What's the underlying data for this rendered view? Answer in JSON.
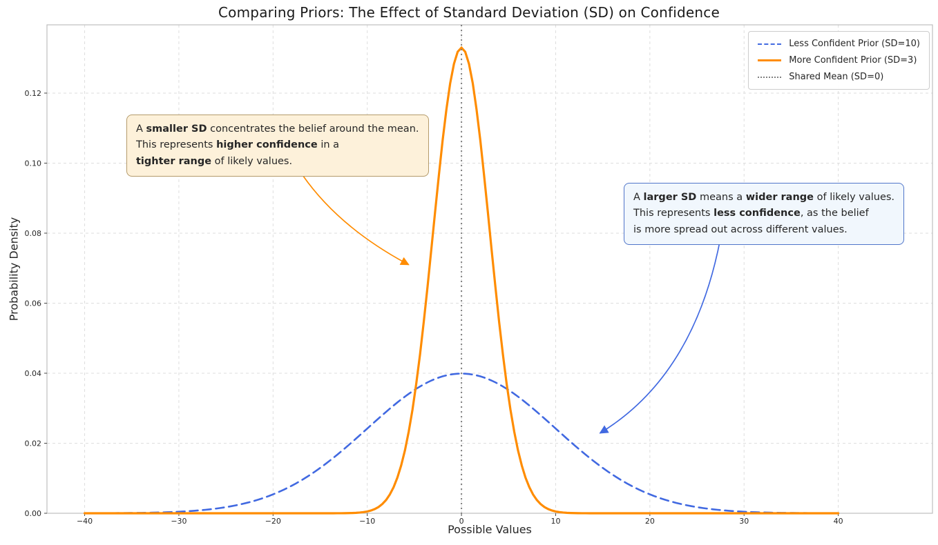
{
  "chart_data": {
    "type": "line",
    "title": "Comparing Priors: The Effect of Standard Deviation (SD) on Confidence",
    "xlabel": "Possible Values",
    "ylabel": "Probability Density",
    "xlim": [
      -44,
      50
    ],
    "ylim": [
      0,
      0.1395
    ],
    "xticks": [
      -40,
      -30,
      -20,
      -10,
      0,
      10,
      20,
      30,
      40
    ],
    "yticks": [
      0,
      0.02,
      0.04,
      0.06,
      0.08,
      0.1,
      0.12
    ],
    "grid": true,
    "legend_position": "upper-right",
    "series": [
      {
        "name": "Less Confident Prior (SD=10)",
        "type": "normal_pdf",
        "mean": 0,
        "sd": 10,
        "peak_density": 0.0399,
        "x_range": [
          -40,
          40
        ],
        "color": "#4169e1",
        "line_style": "dashed",
        "line_width": 2.6
      },
      {
        "name": "More Confident Prior (SD=3)",
        "type": "normal_pdf",
        "mean": 0,
        "sd": 3,
        "peak_density": 0.133,
        "x_range": [
          -40,
          40
        ],
        "color": "#ff8c00",
        "line_style": "solid",
        "line_width": 3.2
      },
      {
        "name": "Shared Mean (SD=0)",
        "type": "vline",
        "x": 0,
        "color": "#7f7f7f",
        "line_style": "dotted",
        "line_width": 2
      }
    ],
    "annotations": [
      {
        "id": "smaller-sd-note",
        "text": "A smaller SD concentrates the belief around the mean. This represents higher confidence in a tighter range of likely values.",
        "lines": [
          [
            {
              "t": "A ",
              "b": 0
            },
            {
              "t": "smaller SD",
              "b": 1
            },
            {
              "t": " concentrates the belief around the mean.",
              "b": 0
            }
          ],
          [
            {
              "t": "This represents ",
              "b": 0
            },
            {
              "t": "higher confidence",
              "b": 1
            },
            {
              "t": " in a",
              "b": 0
            }
          ],
          [
            {
              "t": "tighter range",
              "b": 1
            },
            {
              "t": " of likely values.",
              "b": 0
            }
          ]
        ],
        "box_fill": "#fdf1da",
        "box_border": "#b49a6a",
        "arrow_color": "#ff8c00",
        "arrow": {
          "from": {
            "x": -16.9,
            "y": 0.0967
          },
          "control": {
            "x": -13.0,
            "y": 0.0816
          },
          "to": {
            "x": -5.6,
            "y": 0.071
          }
        }
      },
      {
        "id": "larger-sd-note",
        "text": "A larger SD means a wider range of likely values. This represents less confidence, as the belief is more spread out across different values.",
        "lines": [
          [
            {
              "t": "A ",
              "b": 0
            },
            {
              "t": "larger SD",
              "b": 1
            },
            {
              "t": " means a ",
              "b": 0
            },
            {
              "t": "wider range",
              "b": 1
            },
            {
              "t": " of likely values.",
              "b": 0
            }
          ],
          [
            {
              "t": "This represents ",
              "b": 0
            },
            {
              "t": "less confidence",
              "b": 1
            },
            {
              "t": ", as the belief",
              "b": 0
            }
          ],
          [
            {
              "t": "is more spread out across different values.",
              "b": 0
            }
          ]
        ],
        "box_fill": "#f1f7fd",
        "box_border": "#4f74c9",
        "arrow_color": "#4169e1",
        "arrow": {
          "from": {
            "x": 27.5,
            "y": 0.0786
          },
          "control": {
            "x": 24.7,
            "y": 0.0392
          },
          "to": {
            "x": 14.7,
            "y": 0.0229
          }
        }
      }
    ]
  }
}
